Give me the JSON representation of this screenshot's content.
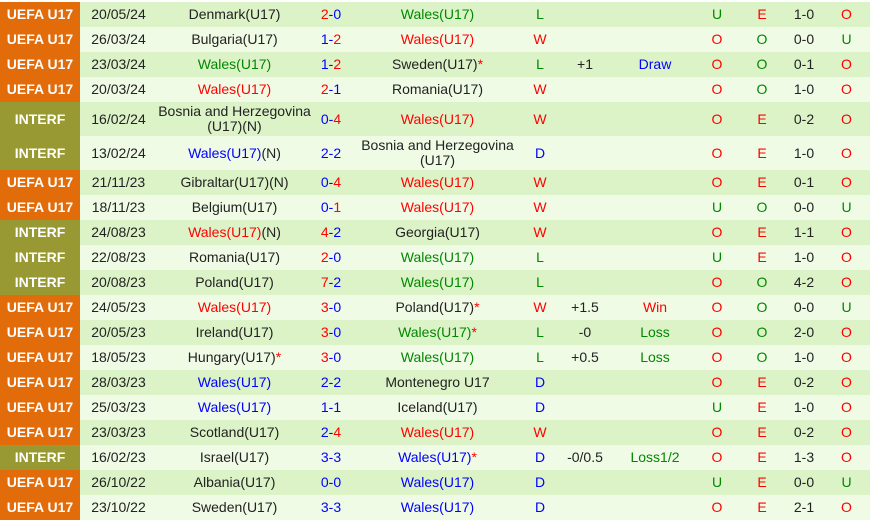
{
  "colors": {
    "uefa": "#e26b0a",
    "interf": "#999933",
    "row_even": "#dcf3c8",
    "row_odd": "#f0fbe6",
    "win": "#ff0000",
    "loss": "#008800",
    "draw": "#0000ff"
  },
  "rows": [
    {
      "league": "UEFA U17",
      "date": "20/05/24",
      "home": {
        "name": "Denmark(U17)",
        "color": "black"
      },
      "score": {
        "home": "2",
        "away": "0"
      },
      "away": {
        "name": "Wales(U17)",
        "color": "green"
      },
      "result": "L",
      "handicap": "",
      "handicap_result": "",
      "ou": "U",
      "eo": "E",
      "ht": "1-0",
      "last": "O"
    },
    {
      "league": "UEFA U17",
      "date": "26/03/24",
      "home": {
        "name": "Bulgaria(U17)",
        "color": "black"
      },
      "score": {
        "home": "1",
        "away": "2"
      },
      "away": {
        "name": "Wales(U17)",
        "color": "red"
      },
      "result": "W",
      "handicap": "",
      "handicap_result": "",
      "ou": "O",
      "eo": "O",
      "ht": "0-0",
      "last": "U"
    },
    {
      "league": "UEFA U17",
      "date": "23/03/24",
      "home": {
        "name": "Wales(U17)",
        "color": "green"
      },
      "score": {
        "home": "1",
        "away": "2"
      },
      "away": {
        "name": "Sweden(U17)",
        "color": "black",
        "star": "*"
      },
      "result": "L",
      "handicap": "+1",
      "handicap_result": "Draw",
      "ou": "O",
      "eo": "O",
      "ht": "0-1",
      "last": "O"
    },
    {
      "league": "UEFA U17",
      "date": "20/03/24",
      "home": {
        "name": "Wales(U17)",
        "color": "red"
      },
      "score": {
        "home": "2",
        "away": "1"
      },
      "away": {
        "name": "Romania(U17)",
        "color": "black"
      },
      "result": "W",
      "handicap": "",
      "handicap_result": "",
      "ou": "O",
      "eo": "O",
      "ht": "1-0",
      "last": "O"
    },
    {
      "league": "INTERF",
      "date": "16/02/24",
      "home": {
        "name": "Bosnia and Herzegovina (U17)(N)",
        "color": "black"
      },
      "score": {
        "home": "0",
        "away": "4"
      },
      "away": {
        "name": "Wales(U17)",
        "color": "red"
      },
      "result": "W",
      "handicap": "",
      "handicap_result": "",
      "ou": "O",
      "eo": "E",
      "ht": "0-2",
      "last": "O"
    },
    {
      "league": "INTERF",
      "date": "13/02/24",
      "home": {
        "name": "Wales(U17)",
        "color": "blue",
        "suffix": "(N)"
      },
      "score": {
        "home": "2",
        "away": "2"
      },
      "away": {
        "name": "Bosnia and Herzegovina (U17)",
        "color": "black"
      },
      "result": "D",
      "handicap": "",
      "handicap_result": "",
      "ou": "O",
      "eo": "E",
      "ht": "1-0",
      "last": "O"
    },
    {
      "league": "UEFA U17",
      "date": "21/11/23",
      "home": {
        "name": "Gibraltar(U17)(N)",
        "color": "black"
      },
      "score": {
        "home": "0",
        "away": "4"
      },
      "away": {
        "name": "Wales(U17)",
        "color": "red"
      },
      "result": "W",
      "handicap": "",
      "handicap_result": "",
      "ou": "O",
      "eo": "E",
      "ht": "0-1",
      "last": "O"
    },
    {
      "league": "UEFA U17",
      "date": "18/11/23",
      "home": {
        "name": "Belgium(U17)",
        "color": "black"
      },
      "score": {
        "home": "0",
        "away": "1"
      },
      "away": {
        "name": "Wales(U17)",
        "color": "red"
      },
      "result": "W",
      "handicap": "",
      "handicap_result": "",
      "ou": "U",
      "eo": "O",
      "ht": "0-0",
      "last": "U"
    },
    {
      "league": "INTERF",
      "date": "24/08/23",
      "home": {
        "name": "Wales(U17)",
        "color": "red",
        "suffix": "(N)"
      },
      "score": {
        "home": "4",
        "away": "2"
      },
      "away": {
        "name": "Georgia(U17)",
        "color": "black"
      },
      "result": "W",
      "handicap": "",
      "handicap_result": "",
      "ou": "O",
      "eo": "E",
      "ht": "1-1",
      "last": "O"
    },
    {
      "league": "INTERF",
      "date": "22/08/23",
      "home": {
        "name": "Romania(U17)",
        "color": "black"
      },
      "score": {
        "home": "2",
        "away": "0"
      },
      "away": {
        "name": "Wales(U17)",
        "color": "green"
      },
      "result": "L",
      "handicap": "",
      "handicap_result": "",
      "ou": "U",
      "eo": "E",
      "ht": "1-0",
      "last": "O"
    },
    {
      "league": "INTERF",
      "date": "20/08/23",
      "home": {
        "name": "Poland(U17)",
        "color": "black"
      },
      "score": {
        "home": "7",
        "away": "2"
      },
      "away": {
        "name": "Wales(U17)",
        "color": "green"
      },
      "result": "L",
      "handicap": "",
      "handicap_result": "",
      "ou": "O",
      "eo": "O",
      "ht": "4-2",
      "last": "O"
    },
    {
      "league": "UEFA U17",
      "date": "24/05/23",
      "home": {
        "name": "Wales(U17)",
        "color": "red"
      },
      "score": {
        "home": "3",
        "away": "0"
      },
      "away": {
        "name": "Poland(U17)",
        "color": "black",
        "star": "*"
      },
      "result": "W",
      "handicap": "+1.5",
      "handicap_result": "Win",
      "ou": "O",
      "eo": "O",
      "ht": "0-0",
      "last": "U"
    },
    {
      "league": "UEFA U17",
      "date": "20/05/23",
      "home": {
        "name": "Ireland(U17)",
        "color": "black"
      },
      "score": {
        "home": "3",
        "away": "0"
      },
      "away": {
        "name": "Wales(U17)",
        "color": "green",
        "star": "*"
      },
      "result": "L",
      "handicap": "-0",
      "handicap_result": "Loss",
      "ou": "O",
      "eo": "O",
      "ht": "2-0",
      "last": "O"
    },
    {
      "league": "UEFA U17",
      "date": "18/05/23",
      "home": {
        "name": "Hungary(U17)",
        "color": "black",
        "star": "*"
      },
      "score": {
        "home": "3",
        "away": "0"
      },
      "away": {
        "name": "Wales(U17)",
        "color": "green"
      },
      "result": "L",
      "handicap": "+0.5",
      "handicap_result": "Loss",
      "ou": "O",
      "eo": "O",
      "ht": "1-0",
      "last": "O"
    },
    {
      "league": "UEFA U17",
      "date": "28/03/23",
      "home": {
        "name": "Wales(U17)",
        "color": "blue"
      },
      "score": {
        "home": "2",
        "away": "2"
      },
      "away": {
        "name": "Montenegro U17",
        "color": "black"
      },
      "result": "D",
      "handicap": "",
      "handicap_result": "",
      "ou": "O",
      "eo": "E",
      "ht": "0-2",
      "last": "O"
    },
    {
      "league": "UEFA U17",
      "date": "25/03/23",
      "home": {
        "name": "Wales(U17)",
        "color": "blue"
      },
      "score": {
        "home": "1",
        "away": "1"
      },
      "away": {
        "name": "Iceland(U17)",
        "color": "black"
      },
      "result": "D",
      "handicap": "",
      "handicap_result": "",
      "ou": "U",
      "eo": "E",
      "ht": "1-0",
      "last": "O"
    },
    {
      "league": "UEFA U17",
      "date": "23/03/23",
      "home": {
        "name": "Scotland(U17)",
        "color": "black"
      },
      "score": {
        "home": "2",
        "away": "4"
      },
      "away": {
        "name": "Wales(U17)",
        "color": "red"
      },
      "result": "W",
      "handicap": "",
      "handicap_result": "",
      "ou": "O",
      "eo": "E",
      "ht": "0-2",
      "last": "O"
    },
    {
      "league": "INTERF",
      "date": "16/02/23",
      "home": {
        "name": "Israel(U17)",
        "color": "black"
      },
      "score": {
        "home": "3",
        "away": "3"
      },
      "away": {
        "name": "Wales(U17)",
        "color": "blue",
        "star": "*"
      },
      "result": "D",
      "handicap": "-0/0.5",
      "handicap_result": "Loss1/2",
      "ou": "O",
      "eo": "E",
      "ht": "1-3",
      "last": "O"
    },
    {
      "league": "UEFA U17",
      "date": "26/10/22",
      "home": {
        "name": "Albania(U17)",
        "color": "black"
      },
      "score": {
        "home": "0",
        "away": "0"
      },
      "away": {
        "name": "Wales(U17)",
        "color": "blue"
      },
      "result": "D",
      "handicap": "",
      "handicap_result": "",
      "ou": "U",
      "eo": "E",
      "ht": "0-0",
      "last": "U"
    },
    {
      "league": "UEFA U17",
      "date": "23/10/22",
      "home": {
        "name": "Sweden(U17)",
        "color": "black"
      },
      "score": {
        "home": "3",
        "away": "3"
      },
      "away": {
        "name": "Wales(U17)",
        "color": "blue"
      },
      "result": "D",
      "handicap": "",
      "handicap_result": "",
      "ou": "O",
      "eo": "E",
      "ht": "2-1",
      "last": "O"
    }
  ]
}
